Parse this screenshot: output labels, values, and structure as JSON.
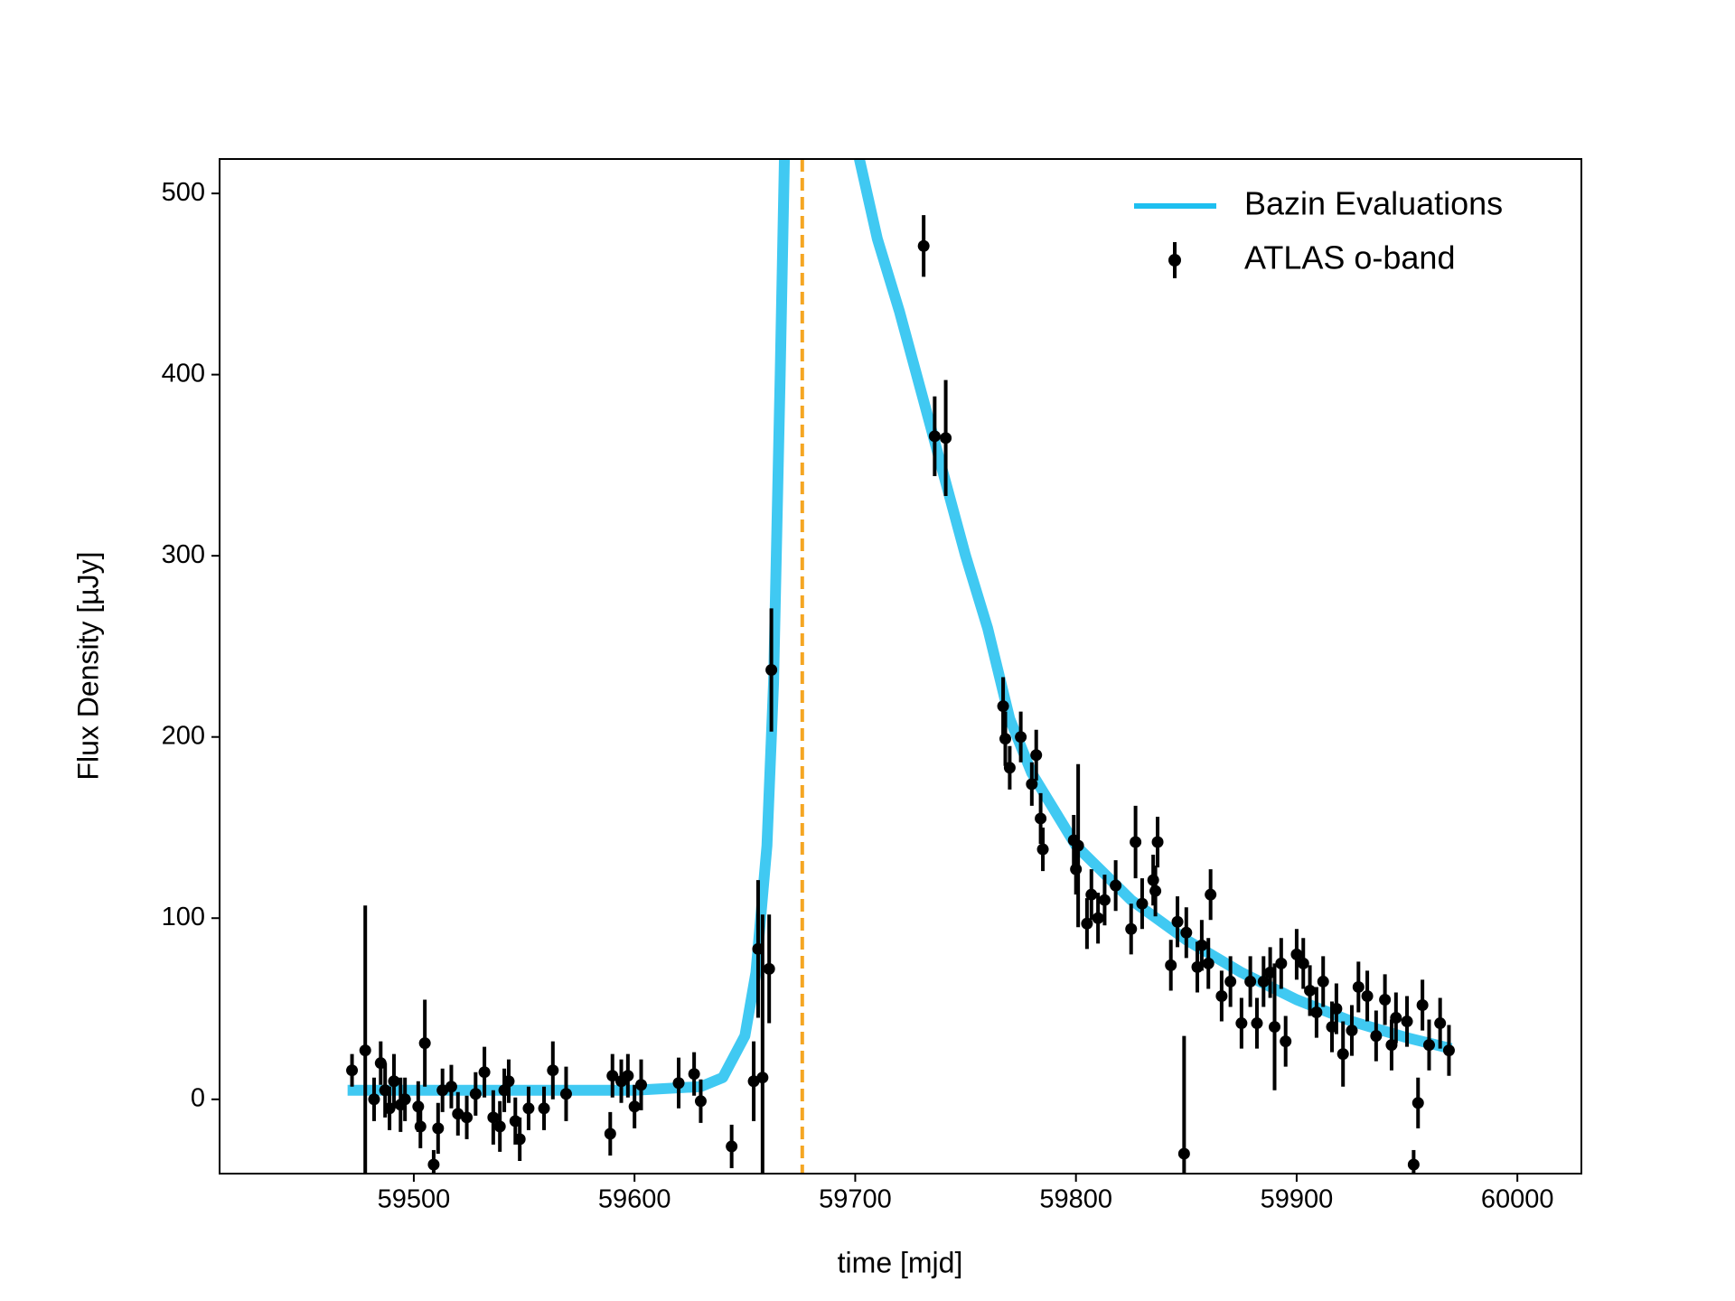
{
  "chart_data": {
    "type": "line",
    "xlabel": "time [mjd]",
    "ylabel": "Flux Density [µJy]",
    "xlim": [
      59412,
      60029
    ],
    "ylim": [
      -41,
      519
    ],
    "xticks": [
      59500,
      59600,
      59700,
      59800,
      59900,
      60000
    ],
    "yticks": [
      0,
      100,
      200,
      300,
      400,
      500
    ],
    "legend": "upper right",
    "vlines": [
      {
        "x": 59676,
        "color": "#f5a623",
        "style": "dashed"
      }
    ],
    "series": [
      {
        "name": "Bazin Evaluations",
        "type": "line",
        "color": "#1ebff0",
        "x": [
          59470,
          59600,
          59630,
          59640,
          59650,
          59655,
          59660,
          59663,
          59666,
          59670,
          59690,
          59698,
          59710,
          59720,
          59730,
          59740,
          59750,
          59760,
          59770,
          59780,
          59790,
          59800,
          59825,
          59850,
          59875,
          59900,
          59925,
          59950,
          59970
        ],
        "y": [
          5,
          5,
          7,
          12,
          35,
          70,
          140,
          230,
          400,
          650,
          900,
          540,
          475,
          435,
          390,
          345,
          300,
          260,
          210,
          180,
          160,
          140,
          110,
          88,
          70,
          55,
          43,
          34,
          28
        ]
      },
      {
        "name": "ATLAS o-band",
        "type": "errorbar",
        "color": "#000000",
        "x": [
          59472,
          59478,
          59482,
          59485,
          59487,
          59489,
          59491,
          59494,
          59496,
          59502,
          59503,
          59505,
          59509,
          59511,
          59513,
          59517,
          59520,
          59524,
          59528,
          59532,
          59536,
          59539,
          59541,
          59543,
          59546,
          59548,
          59552,
          59559,
          59563,
          59569,
          59589,
          59590,
          59594,
          59597,
          59600,
          59603,
          59620,
          59627,
          59630,
          59644,
          59654,
          59656,
          59658,
          59661,
          59662,
          59731,
          59736,
          59741,
          59767,
          59768,
          59770,
          59775,
          59780,
          59782,
          59784,
          59785,
          59799,
          59800,
          59801,
          59805,
          59807,
          59810,
          59813,
          59818,
          59825,
          59827,
          59830,
          59835,
          59836,
          59837,
          59843,
          59846,
          59849,
          59850,
          59855,
          59857,
          59860,
          59861,
          59866,
          59870,
          59875,
          59879,
          59882,
          59885,
          59888,
          59890,
          59893,
          59895,
          59900,
          59903,
          59906,
          59909,
          59912,
          59916,
          59918,
          59921,
          59925,
          59928,
          59932,
          59936,
          59940,
          59943,
          59945,
          59950,
          59953,
          59955,
          59957,
          59960,
          59965,
          59969
        ],
        "y": [
          16,
          27,
          0,
          20,
          5,
          -5,
          10,
          -3,
          0,
          -4,
          -15,
          31,
          -36,
          -16,
          5,
          7,
          -8,
          -10,
          3,
          15,
          -10,
          -15,
          5,
          10,
          -12,
          -22,
          -5,
          -5,
          16,
          3,
          -19,
          13,
          10,
          13,
          -4,
          8,
          9,
          14,
          -1,
          -26,
          10,
          83,
          12,
          72,
          237,
          471,
          366,
          365,
          217,
          199,
          183,
          200,
          174,
          190,
          155,
          138,
          143,
          127,
          140,
          97,
          113,
          100,
          110,
          118,
          94,
          142,
          108,
          121,
          115,
          142,
          74,
          98,
          -30,
          92,
          73,
          85,
          75,
          113,
          57,
          65,
          42,
          65,
          42,
          65,
          70,
          40,
          75,
          32,
          80,
          75,
          60,
          48,
          65,
          40,
          50,
          25,
          38,
          62,
          57,
          35,
          55,
          30,
          45,
          43,
          -36,
          -2,
          52,
          30,
          42,
          27
        ],
        "yerr": [
          9,
          80,
          12,
          12,
          15,
          12,
          15,
          15,
          12,
          14,
          12,
          24,
          8,
          14,
          12,
          12,
          12,
          12,
          12,
          14,
          15,
          14,
          12,
          12,
          13,
          12,
          12,
          12,
          16,
          15,
          12,
          12,
          12,
          12,
          12,
          14,
          14,
          12,
          12,
          12,
          22,
          38,
          90,
          30,
          34,
          17,
          22,
          32,
          16,
          15,
          12,
          14,
          12,
          14,
          14,
          12,
          14,
          14,
          45,
          14,
          14,
          14,
          14,
          14,
          14,
          20,
          14,
          14,
          14,
          14,
          14,
          14,
          65,
          14,
          14,
          14,
          14,
          14,
          14,
          14,
          14,
          14,
          14,
          14,
          14,
          35,
          14,
          14,
          14,
          14,
          14,
          14,
          14,
          14,
          14,
          18,
          14,
          14,
          14,
          14,
          14,
          14,
          14,
          14,
          8,
          14,
          14,
          14,
          14,
          14
        ]
      }
    ]
  }
}
